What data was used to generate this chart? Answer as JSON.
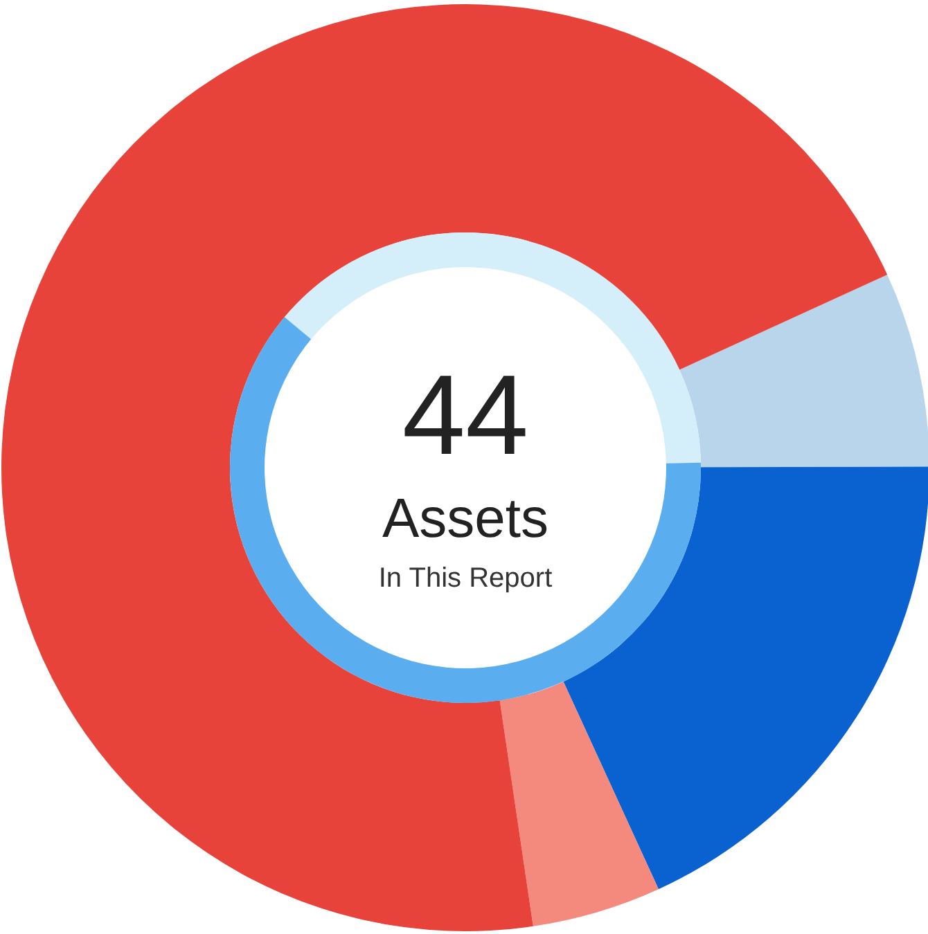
{
  "chart_data": [
    {
      "type": "donut",
      "title": "44",
      "subtitle": "Assets",
      "annotations": [
        "In This Report"
      ],
      "categories": [
        null,
        null,
        null,
        null
      ],
      "values": [
        6.8,
        18.2,
        4.5,
        70.5
      ],
      "colors": [
        "#b9d5ec",
        "#0a62d0",
        "#f48a7e",
        "#e8433a"
      ]
    },
    {
      "type": "donut",
      "categories": [
        null,
        null
      ],
      "values": [
        38.6,
        61.4
      ],
      "colors": [
        "#d4eefa",
        "#5aaef0"
      ]
    }
  ]
}
